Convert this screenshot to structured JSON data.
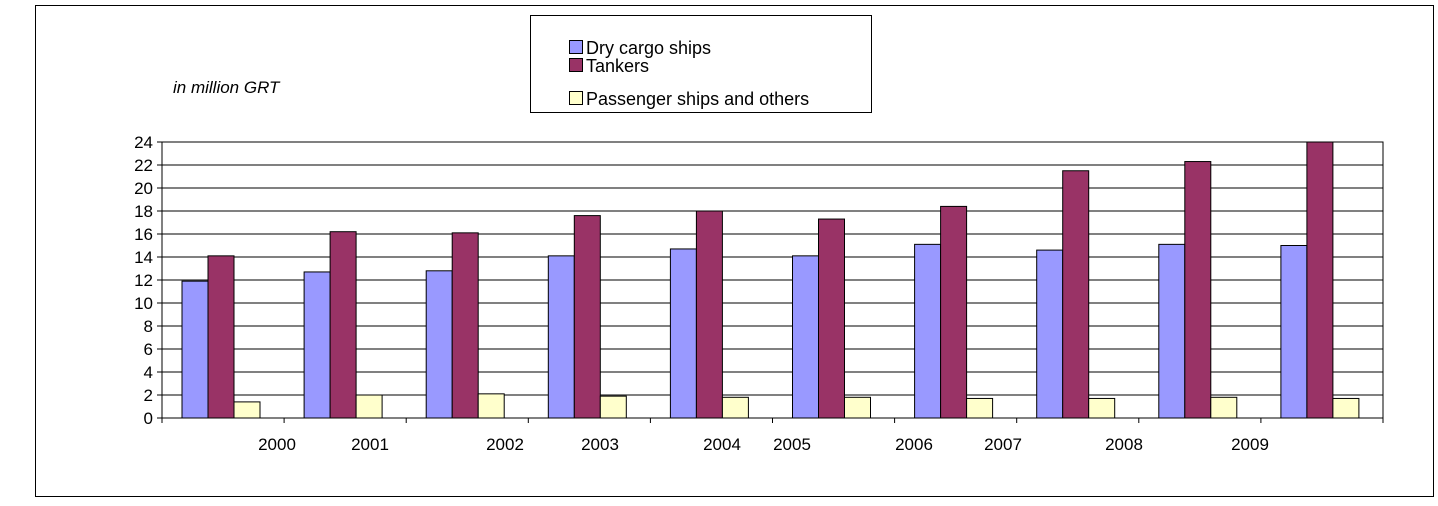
{
  "unit_label": "in million GRT",
  "chart_data": {
    "type": "bar",
    "title": "",
    "xlabel": "",
    "ylabel": "in million GRT",
    "ylim": [
      0,
      24
    ],
    "ytick_step": 2,
    "grid": "horizontal",
    "legend_position": "top-center",
    "categories": [
      "2000",
      "2001",
      "2002",
      "2003",
      "2004",
      "2005",
      "2006",
      "2007",
      "2008",
      "2009"
    ],
    "series": [
      {
        "name": "Dry cargo ships",
        "color": "#9999FF",
        "values": [
          11.9,
          12.7,
          12.8,
          14.1,
          14.7,
          14.1,
          15.1,
          14.6,
          15.1,
          15.0
        ]
      },
      {
        "name": "Tankers",
        "color": "#993366",
        "values": [
          14.1,
          16.2,
          16.1,
          17.6,
          18.0,
          17.3,
          18.4,
          21.5,
          22.3,
          24.0
        ]
      },
      {
        "name": "Passenger ships and others",
        "color": "#FFFFCC",
        "values": [
          1.4,
          2.0,
          2.1,
          1.9,
          1.8,
          1.8,
          1.7,
          1.7,
          1.8,
          1.7
        ]
      }
    ]
  }
}
